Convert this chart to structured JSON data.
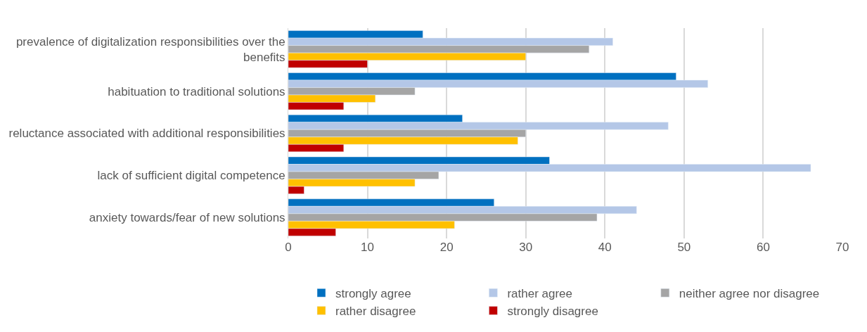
{
  "chart_data": {
    "type": "bar",
    "orientation": "horizontal",
    "categories": [
      "prevalence of digitalization responsibilities over the benefits",
      "habituation to traditional solutions",
      "reluctance associated with additional responsibilities",
      "lack of sufficient digital competence",
      "anxiety towards/fear of new solutions"
    ],
    "series": [
      {
        "name": "strongly agree",
        "color": "#0070c0",
        "values": [
          17,
          49,
          22,
          33,
          26
        ]
      },
      {
        "name": "rather agree",
        "color": "#b4c7e7",
        "values": [
          41,
          53,
          48,
          66,
          44
        ]
      },
      {
        "name": "neither agree nor disagree",
        "color": "#a5a5a5",
        "values": [
          38,
          16,
          30,
          19,
          39
        ]
      },
      {
        "name": "rather disagree",
        "color": "#ffc000",
        "values": [
          30,
          11,
          29,
          16,
          21
        ]
      },
      {
        "name": "strongly disagree",
        "color": "#c00000",
        "values": [
          10,
          7,
          7,
          2,
          6
        ]
      }
    ],
    "xlim": [
      0,
      70
    ],
    "xticks": [
      0,
      10,
      20,
      30,
      40,
      50,
      60,
      70
    ],
    "grid": "x",
    "legend": "bottom"
  }
}
